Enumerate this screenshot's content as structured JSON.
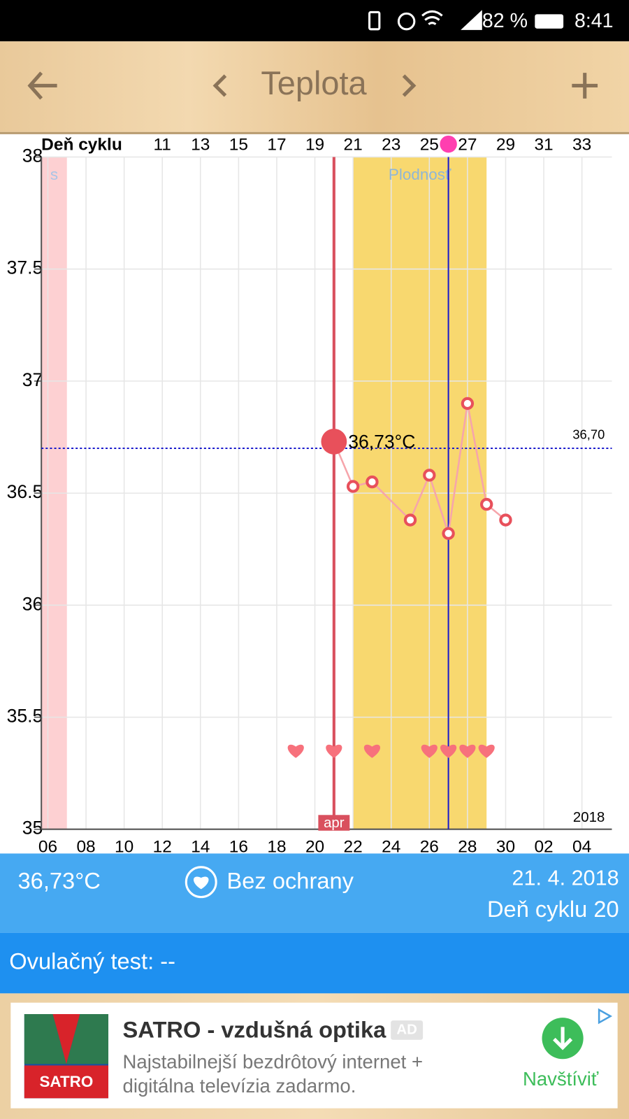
{
  "status_bar": {
    "battery": "82 %",
    "time": "8:41"
  },
  "toolbar": {
    "title": "Teplota"
  },
  "chart_data": {
    "type": "line",
    "x_label": "Deň cyklu",
    "x": [
      20,
      21,
      22,
      24,
      25,
      26,
      27,
      28,
      29
    ],
    "values": [
      36.73,
      36.53,
      36.55,
      36.38,
      36.58,
      36.32,
      36.9,
      36.45,
      36.38
    ],
    "value_labels": [
      "36,73°C",
      null,
      null,
      null,
      null,
      null,
      null,
      null,
      null
    ],
    "color": "#f6a5ab",
    "marker_color": "#e8505b",
    "xlim": [
      4.66,
      34.57
    ],
    "ylim": [
      35,
      38
    ],
    "yticks": [
      35,
      35.5,
      36,
      36.5,
      37,
      37.5,
      38
    ],
    "xticks": [
      {
        "value": 5,
        "label": "06"
      },
      {
        "value": 7,
        "label": "08"
      },
      {
        "value": 9,
        "label": "10"
      },
      {
        "value": 11,
        "label": "12"
      },
      {
        "value": 13,
        "label": "14"
      },
      {
        "value": 15,
        "label": "16"
      },
      {
        "value": 17,
        "label": "18"
      },
      {
        "value": 19,
        "label": "20"
      },
      {
        "value": 21,
        "label": "22"
      },
      {
        "value": 23,
        "label": "24"
      },
      {
        "value": 25,
        "label": "26"
      },
      {
        "value": 27,
        "label": "28"
      },
      {
        "value": 29,
        "label": "30"
      },
      {
        "value": 31,
        "label": "02"
      },
      {
        "value": 33,
        "label": "04"
      }
    ],
    "x2ticks": [
      11,
      13,
      15,
      17,
      19,
      21,
      23,
      25,
      27,
      29,
      31,
      33
    ],
    "grid": true,
    "bands": [
      {
        "name": "s",
        "range": [
          4.66,
          6
        ],
        "color": "#fdd0d2",
        "label_color": "#a9c4e6"
      },
      {
        "name": "Plodnosť",
        "range": [
          21,
          28
        ],
        "color": "#f8d86f",
        "label_color": "#8fb6d6"
      }
    ],
    "reference_line": {
      "value": 36.7,
      "label": "36,70",
      "color": "#1a1acc"
    },
    "selected_day": 20,
    "selected_label": "apr",
    "selected_color": "#d9505e",
    "ovulation_day": 26,
    "ovulation_color": "#1a1acc",
    "year_label": "2018",
    "intercourse_days": [
      18,
      20,
      22,
      25,
      26,
      27,
      28
    ],
    "heart_color": "#f7717c"
  },
  "info": {
    "temperature": "36,73°C",
    "protection": "Bez ochrany",
    "date": "21. 4. 2018",
    "cycle_day": "Deň cyklu 20",
    "ovulation_test": "Ovulačný test: --"
  },
  "ad": {
    "logo": "SATRO",
    "title": "SATRO - vzdušná optika",
    "badge": "AD",
    "description": [
      "Najstabilnejší bezdrôtový internet +",
      "digitálna televízia zadarmo."
    ],
    "action": "Navštíviť"
  }
}
